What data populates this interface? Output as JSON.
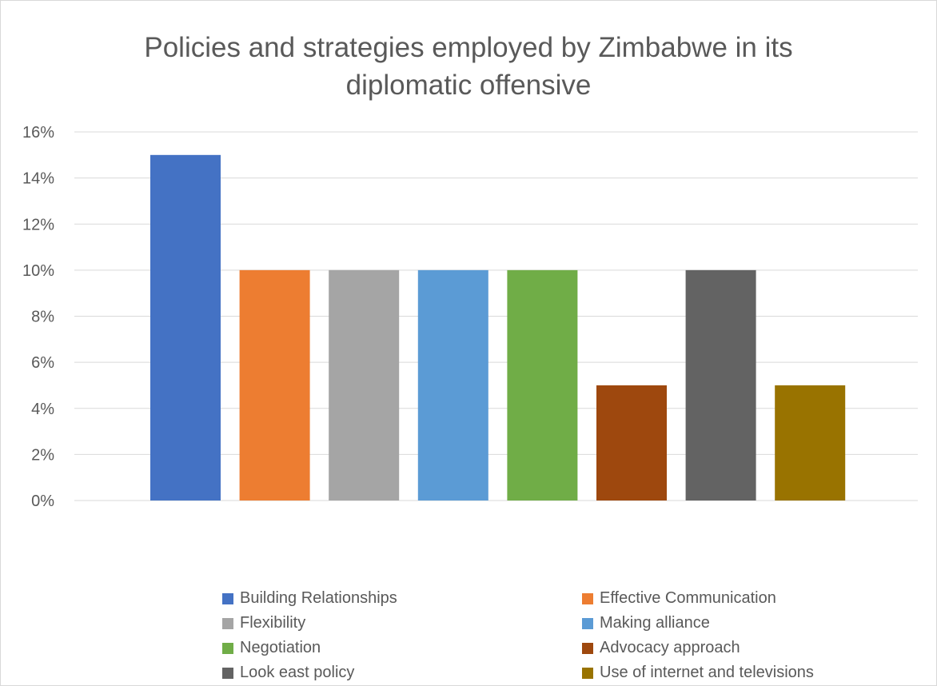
{
  "chart_data": {
    "type": "bar",
    "title": "Policies and strategies employed by Zimbabwe in its diplomatic offensive",
    "title_lines": [
      "Policies and strategies employed by Zimbabwe in its",
      "diplomatic offensive"
    ],
    "xlabel": "",
    "ylabel": "",
    "ylim": [
      0,
      16
    ],
    "y_ticks": [
      "0%",
      "2%",
      "4%",
      "6%",
      "8%",
      "10%",
      "12%",
      "14%",
      "16%"
    ],
    "y_tick_values": [
      0,
      2,
      4,
      6,
      8,
      10,
      12,
      14,
      16
    ],
    "grid": true,
    "legend_position": "bottom",
    "series": [
      {
        "name": "Building Relationships",
        "value": 15,
        "color": "#4472C4"
      },
      {
        "name": "Effective Communication",
        "value": 10,
        "color": "#ED7D31"
      },
      {
        "name": "Flexibility",
        "value": 10,
        "color": "#A5A5A5"
      },
      {
        "name": "Making alliance",
        "value": 10,
        "color": "#5B9BD5"
      },
      {
        "name": "Negotiation",
        "value": 10,
        "color": "#70AD47"
      },
      {
        "name": "Advocacy approach",
        "value": 5,
        "color": "#9E480E"
      },
      {
        "name": "Look east policy",
        "value": 10,
        "color": "#636363"
      },
      {
        "name": "Use  of internet and televisions",
        "value": 5,
        "color": "#997300"
      }
    ]
  }
}
